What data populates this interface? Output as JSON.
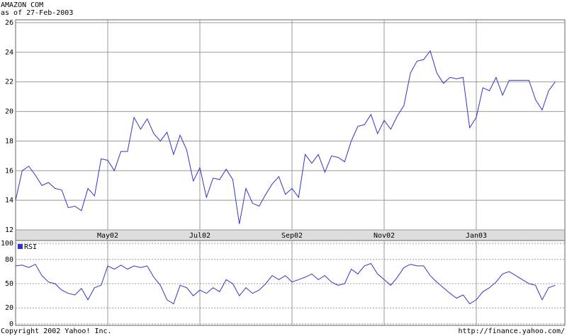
{
  "chart_data": [
    {
      "type": "line",
      "title": "AMAZON COM",
      "subtitle": "as of 27-Feb-2003",
      "color": "#3333cc",
      "grid": true,
      "categories": [
        null,
        null,
        null,
        null,
        null,
        null,
        null,
        null,
        null,
        null,
        null,
        null,
        null,
        null,
        "May02",
        null,
        null,
        null,
        null,
        null,
        null,
        null,
        null,
        null,
        null,
        null,
        null,
        null,
        "Jul02",
        null,
        null,
        null,
        null,
        null,
        null,
        null,
        null,
        null,
        null,
        null,
        null,
        null,
        "Sep02",
        null,
        null,
        null,
        null,
        null,
        null,
        null,
        null,
        null,
        null,
        null,
        null,
        null,
        "Nov02",
        null,
        null,
        null,
        null,
        null,
        null,
        null,
        null,
        null,
        null,
        null,
        null,
        null,
        "Jan03",
        null,
        null,
        null,
        null,
        null,
        null,
        null,
        null,
        null,
        null,
        null,
        null
      ],
      "values": [
        14.0,
        16.0,
        16.3,
        15.7,
        15.0,
        15.2,
        14.8,
        14.7,
        13.5,
        13.6,
        13.3,
        14.8,
        14.3,
        16.8,
        16.7,
        16.0,
        17.3,
        17.3,
        19.6,
        18.8,
        19.5,
        18.5,
        18.0,
        18.6,
        17.1,
        18.4,
        17.4,
        15.3,
        16.2,
        14.2,
        15.5,
        15.4,
        16.1,
        15.4,
        12.4,
        14.8,
        13.8,
        13.6,
        14.4,
        15.1,
        15.6,
        14.4,
        14.8,
        14.2,
        17.1,
        16.5,
        17.1,
        15.9,
        17.0,
        16.9,
        16.6,
        18.0,
        19.0,
        19.1,
        19.8,
        18.5,
        19.4,
        18.8,
        19.7,
        20.4,
        22.6,
        23.4,
        23.5,
        24.1,
        22.6,
        21.9,
        22.3,
        22.2,
        22.3,
        18.9,
        19.6,
        21.6,
        21.4,
        22.3,
        21.1,
        22.1,
        22.1,
        22.1,
        22.1,
        20.8,
        20.1,
        21.4,
        22.0
      ],
      "ylim": [
        12,
        26
      ],
      "yticks": [
        12,
        14,
        16,
        18,
        20,
        22,
        24,
        26
      ]
    },
    {
      "type": "line",
      "grid": true,
      "legend": "top-left",
      "series": [
        {
          "name": "RSI",
          "color": "#3333cc",
          "values": [
            72,
            73,
            70,
            74,
            60,
            52,
            50,
            42,
            38,
            36,
            44,
            30,
            45,
            48,
            72,
            68,
            73,
            68,
            72,
            70,
            72,
            58,
            48,
            30,
            25,
            48,
            45,
            35,
            42,
            38,
            45,
            40,
            55,
            50,
            35,
            45,
            38,
            42,
            50,
            60,
            55,
            60,
            52,
            55,
            58,
            62,
            55,
            60,
            52,
            48,
            50,
            68,
            62,
            72,
            75,
            62,
            55,
            48,
            58,
            70,
            74,
            72,
            72,
            60,
            52,
            45,
            38,
            32,
            36,
            25,
            30,
            40,
            45,
            52,
            62,
            65,
            60,
            55,
            50,
            48,
            30,
            45,
            48
          ]
        }
      ],
      "ylim": [
        0,
        100
      ],
      "yticks": [
        0,
        20,
        50,
        80,
        100
      ]
    }
  ],
  "copyright": "Copyright 2002 Yahoo! Inc.",
  "source_url": "http://finance.yahoo.com/"
}
